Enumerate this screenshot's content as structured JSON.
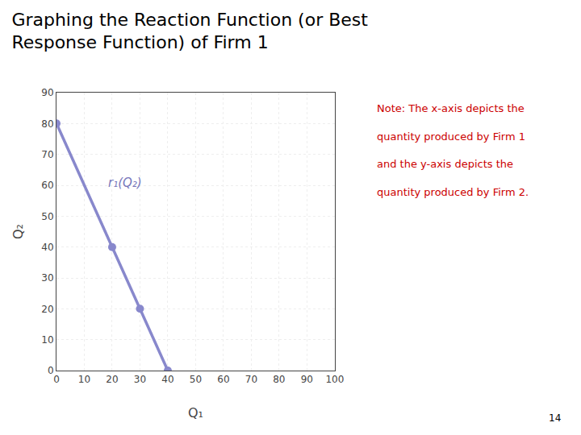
{
  "chart_data": {
    "type": "line",
    "title": [
      "Graphing the Reaction Function (or Best",
      "Response Function) of Firm 1"
    ],
    "x": [
      0,
      20,
      30,
      40
    ],
    "values": [
      80,
      40,
      20,
      0
    ],
    "color": "#8888cc",
    "marker": "circle",
    "line_style": "solid",
    "xlabel": "Q₁",
    "ylabel": "Q₂",
    "xlim": [
      0,
      100
    ],
    "ylim": [
      0,
      90
    ],
    "xticks": [
      0,
      10,
      20,
      30,
      40,
      50,
      60,
      70,
      80,
      90,
      100
    ],
    "yticks": [
      0,
      10,
      20,
      30,
      40,
      50,
      60,
      70,
      80,
      90
    ],
    "grid": true,
    "annotations": [
      {
        "text": "r₁(Q₂)",
        "x": 18,
        "y": 58,
        "color": "#7777bb"
      }
    ],
    "note": {
      "lines": [
        "Note: The x-axis depicts the",
        "quantity produced by Firm 1",
        "and the y-axis depicts the",
        "quantity produced by Firm 2."
      ],
      "color": "#cc0000"
    },
    "page_number": "14"
  }
}
